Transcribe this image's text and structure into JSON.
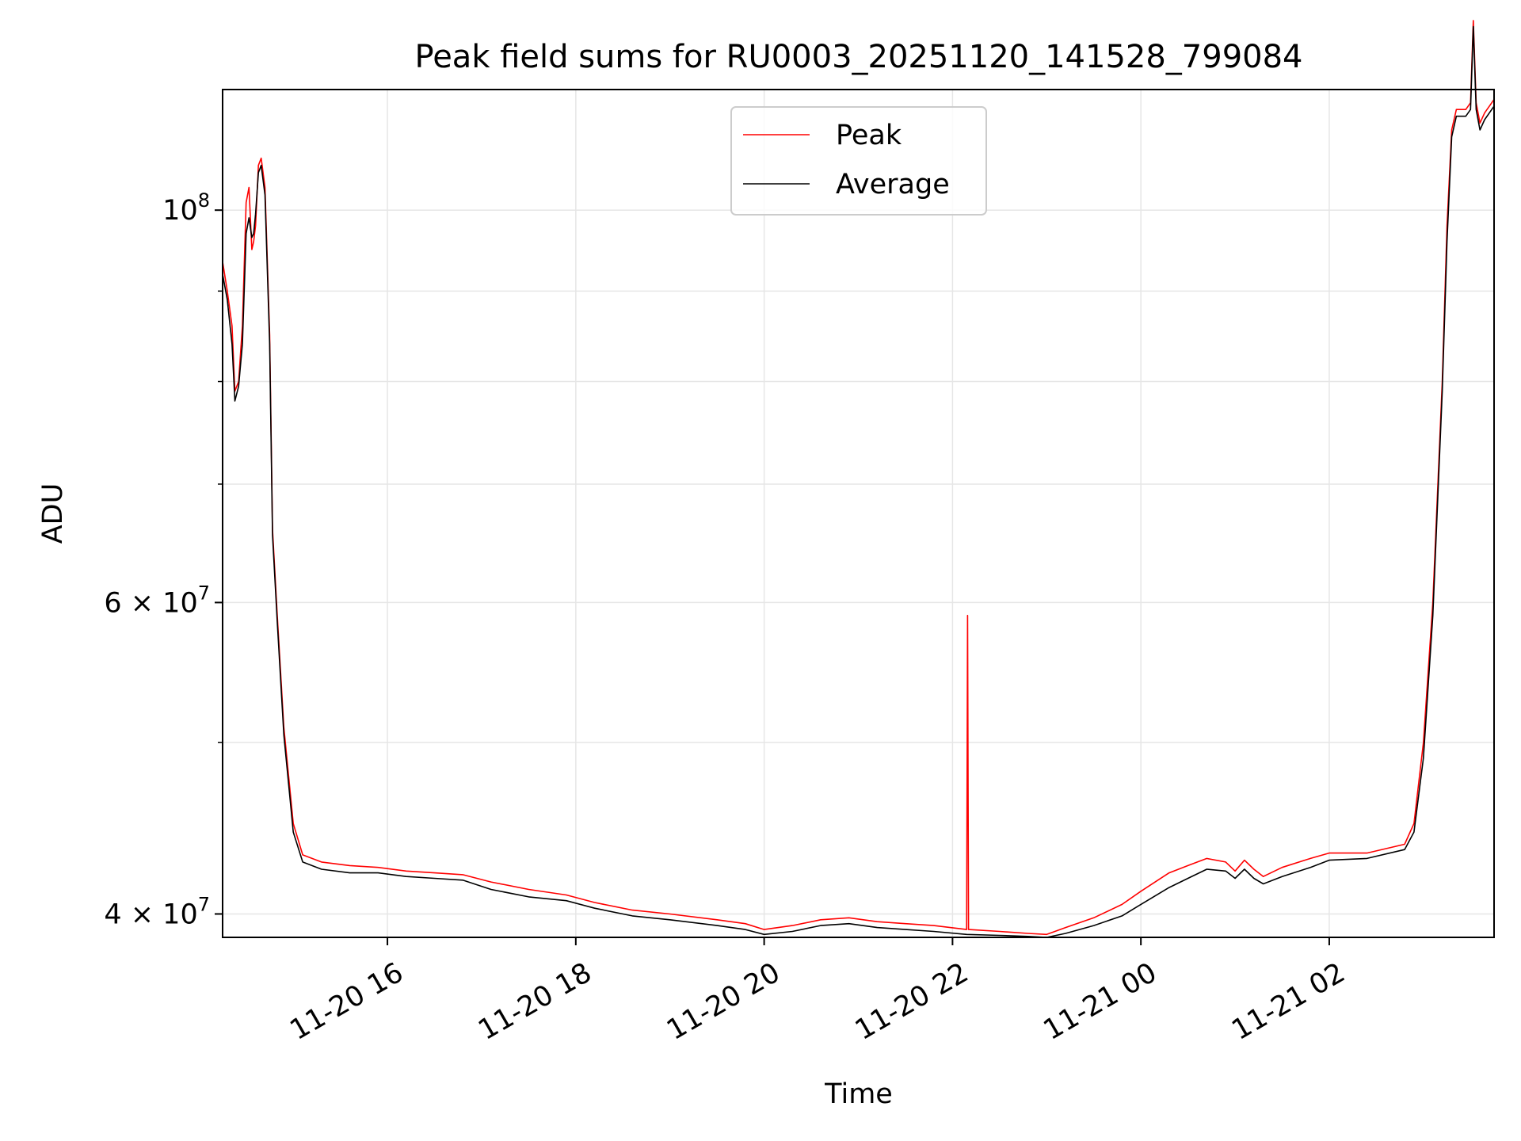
{
  "chart_data": {
    "type": "line",
    "title": "Peak field sums for RU0003_20251120_141528_799084",
    "xlabel": "Time",
    "ylabel": "ADU",
    "yscale": "log",
    "xlim_hours": [
      14.25,
      27.75
    ],
    "ylim": [
      38800000,
      117000000
    ],
    "x_unit": "hours since 2025-11-20 00:00",
    "x_ticks": [
      {
        "value": 16,
        "label": "11-20 16"
      },
      {
        "value": 18,
        "label": "11-20 18"
      },
      {
        "value": 20,
        "label": "11-20 20"
      },
      {
        "value": 22,
        "label": "11-20 22"
      },
      {
        "value": 24,
        "label": "11-21 00"
      },
      {
        "value": 26,
        "label": "11-21 02"
      }
    ],
    "y_major_ticks": [
      {
        "value": 40000000,
        "base": "4",
        "exp": "7"
      },
      {
        "value": 60000000,
        "base": "6",
        "exp": "7"
      },
      {
        "value": 100000000,
        "base": "10",
        "exp": "8"
      }
    ],
    "y_minor_ticks": [
      50000000,
      70000000,
      80000000,
      90000000
    ],
    "legend": {
      "position": "top-center",
      "entries": [
        "Peak",
        "Average"
      ]
    },
    "grid": true,
    "series": [
      {
        "name": "Peak",
        "color": "#ff0000",
        "points": [
          [
            14.25,
            93500000
          ],
          [
            14.3,
            90000000
          ],
          [
            14.35,
            86000000
          ],
          [
            14.38,
            79000000
          ],
          [
            14.42,
            80000000
          ],
          [
            14.46,
            86000000
          ],
          [
            14.5,
            101000000
          ],
          [
            14.53,
            103000000
          ],
          [
            14.56,
            95000000
          ],
          [
            14.58,
            96000000
          ],
          [
            14.6,
            98000000
          ],
          [
            14.63,
            106000000
          ],
          [
            14.66,
            107000000
          ],
          [
            14.7,
            103000000
          ],
          [
            14.75,
            85000000
          ],
          [
            14.78,
            66000000
          ],
          [
            14.83,
            59000000
          ],
          [
            14.9,
            51000000
          ],
          [
            15.0,
            45000000
          ],
          [
            15.1,
            43200000
          ],
          [
            15.3,
            42800000
          ],
          [
            15.6,
            42600000
          ],
          [
            15.9,
            42500000
          ],
          [
            16.2,
            42300000
          ],
          [
            16.5,
            42200000
          ],
          [
            16.8,
            42100000
          ],
          [
            17.1,
            41700000
          ],
          [
            17.5,
            41300000
          ],
          [
            17.9,
            41000000
          ],
          [
            18.2,
            40600000
          ],
          [
            18.6,
            40200000
          ],
          [
            19.0,
            40000000
          ],
          [
            19.5,
            39700000
          ],
          [
            19.8,
            39500000
          ],
          [
            20.0,
            39200000
          ],
          [
            20.3,
            39400000
          ],
          [
            20.6,
            39700000
          ],
          [
            20.9,
            39800000
          ],
          [
            21.2,
            39600000
          ],
          [
            21.5,
            39500000
          ],
          [
            21.8,
            39400000
          ],
          [
            22.15,
            39200000
          ],
          [
            22.16,
            59000000
          ],
          [
            22.17,
            39200000
          ],
          [
            22.5,
            39100000
          ],
          [
            22.8,
            39000000
          ],
          [
            23.0,
            38950000
          ],
          [
            23.2,
            39300000
          ],
          [
            23.5,
            39800000
          ],
          [
            23.8,
            40500000
          ],
          [
            24.0,
            41200000
          ],
          [
            24.3,
            42200000
          ],
          [
            24.5,
            42600000
          ],
          [
            24.7,
            43000000
          ],
          [
            24.9,
            42800000
          ],
          [
            25.0,
            42300000
          ],
          [
            25.1,
            42900000
          ],
          [
            25.2,
            42400000
          ],
          [
            25.3,
            42000000
          ],
          [
            25.5,
            42500000
          ],
          [
            25.8,
            43000000
          ],
          [
            26.0,
            43300000
          ],
          [
            26.4,
            43300000
          ],
          [
            26.8,
            43800000
          ],
          [
            26.9,
            45000000
          ],
          [
            27.0,
            50000000
          ],
          [
            27.1,
            60000000
          ],
          [
            27.2,
            80000000
          ],
          [
            27.25,
            98000000
          ],
          [
            27.3,
            111000000
          ],
          [
            27.35,
            114000000
          ],
          [
            27.45,
            114000000
          ],
          [
            27.5,
            115000000
          ],
          [
            27.53,
            128000000
          ],
          [
            27.56,
            115000000
          ],
          [
            27.6,
            112000000
          ],
          [
            27.65,
            113500000
          ],
          [
            27.7,
            114500000
          ],
          [
            27.75,
            115500000
          ]
        ]
      },
      {
        "name": "Average",
        "color": "#000000",
        "points": [
          [
            14.25,
            92000000
          ],
          [
            14.3,
            89000000
          ],
          [
            14.35,
            84000000
          ],
          [
            14.38,
            78000000
          ],
          [
            14.42,
            79500000
          ],
          [
            14.46,
            84000000
          ],
          [
            14.5,
            97000000
          ],
          [
            14.53,
            99000000
          ],
          [
            14.56,
            96500000
          ],
          [
            14.58,
            97000000
          ],
          [
            14.6,
            99500000
          ],
          [
            14.63,
            105000000
          ],
          [
            14.66,
            106000000
          ],
          [
            14.7,
            102000000
          ],
          [
            14.75,
            84000000
          ],
          [
            14.78,
            65500000
          ],
          [
            14.83,
            58500000
          ],
          [
            14.9,
            50500000
          ],
          [
            15.0,
            44500000
          ],
          [
            15.1,
            42800000
          ],
          [
            15.3,
            42400000
          ],
          [
            15.6,
            42200000
          ],
          [
            15.9,
            42200000
          ],
          [
            16.2,
            42000000
          ],
          [
            16.5,
            41900000
          ],
          [
            16.8,
            41800000
          ],
          [
            17.1,
            41300000
          ],
          [
            17.5,
            40900000
          ],
          [
            17.9,
            40700000
          ],
          [
            18.2,
            40300000
          ],
          [
            18.6,
            39900000
          ],
          [
            19.0,
            39700000
          ],
          [
            19.5,
            39400000
          ],
          [
            19.8,
            39200000
          ],
          [
            20.0,
            38950000
          ],
          [
            20.3,
            39100000
          ],
          [
            20.6,
            39400000
          ],
          [
            20.9,
            39500000
          ],
          [
            21.2,
            39300000
          ],
          [
            21.5,
            39200000
          ],
          [
            21.8,
            39100000
          ],
          [
            22.15,
            38950000
          ],
          [
            22.5,
            38900000
          ],
          [
            22.8,
            38850000
          ],
          [
            23.0,
            38800000
          ],
          [
            23.2,
            39000000
          ],
          [
            23.5,
            39400000
          ],
          [
            23.8,
            39900000
          ],
          [
            24.0,
            40500000
          ],
          [
            24.3,
            41400000
          ],
          [
            24.5,
            41900000
          ],
          [
            24.7,
            42400000
          ],
          [
            24.9,
            42300000
          ],
          [
            25.0,
            41900000
          ],
          [
            25.1,
            42400000
          ],
          [
            25.2,
            41900000
          ],
          [
            25.3,
            41600000
          ],
          [
            25.5,
            42000000
          ],
          [
            25.8,
            42500000
          ],
          [
            26.0,
            42900000
          ],
          [
            26.4,
            43000000
          ],
          [
            26.8,
            43500000
          ],
          [
            26.9,
            44500000
          ],
          [
            27.0,
            49000000
          ],
          [
            27.1,
            59000000
          ],
          [
            27.2,
            79000000
          ],
          [
            27.25,
            96000000
          ],
          [
            27.3,
            110000000
          ],
          [
            27.35,
            113000000
          ],
          [
            27.45,
            113000000
          ],
          [
            27.5,
            114000000
          ],
          [
            27.53,
            127000000
          ],
          [
            27.56,
            114000000
          ],
          [
            27.6,
            111000000
          ],
          [
            27.65,
            112500000
          ],
          [
            27.7,
            113500000
          ],
          [
            27.75,
            114500000
          ]
        ]
      }
    ]
  }
}
